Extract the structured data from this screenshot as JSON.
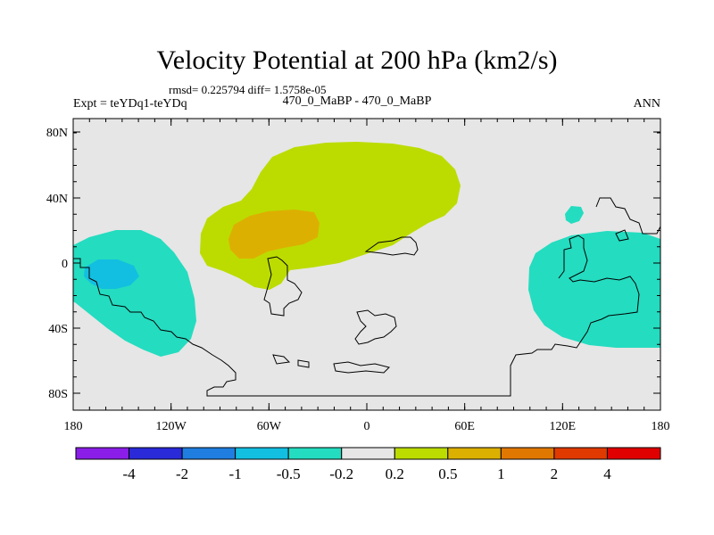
{
  "title": "Velocity Potential at 200 hPa (km2/s)",
  "stats_line": "rmsd= 0.225794 diff= 1.5758e-05",
  "expt_label": "Expt = teYDq1-teYDq",
  "case_label": "470_0_MaBP - 470_0_MaBP",
  "season": "ANN",
  "y_axis": {
    "ticks": [
      "80N",
      "40N",
      "0",
      "40S",
      "80S"
    ]
  },
  "x_axis": {
    "ticks": [
      "180",
      "120W",
      "60W",
      "0",
      "60E",
      "120E",
      "180"
    ]
  },
  "colorbar": {
    "colors": [
      "#8a1ee8",
      "#2a2ad8",
      "#1f7ee0",
      "#12bfe0",
      "#24dcc0",
      "#e6e6e6",
      "#bcdc00",
      "#dcb000",
      "#e07800",
      "#e03a00",
      "#e00000"
    ],
    "labels": [
      "-4",
      "-2",
      "-1",
      "-0.5",
      "-0.2",
      "0.2",
      "0.5",
      "1",
      "2",
      "4"
    ]
  },
  "fill_colors": {
    "background": "#e6e6e6",
    "teal": "#24dcc0",
    "cyan": "#12bfe0",
    "lime": "#bcdc00",
    "gold": "#dcb000"
  }
}
